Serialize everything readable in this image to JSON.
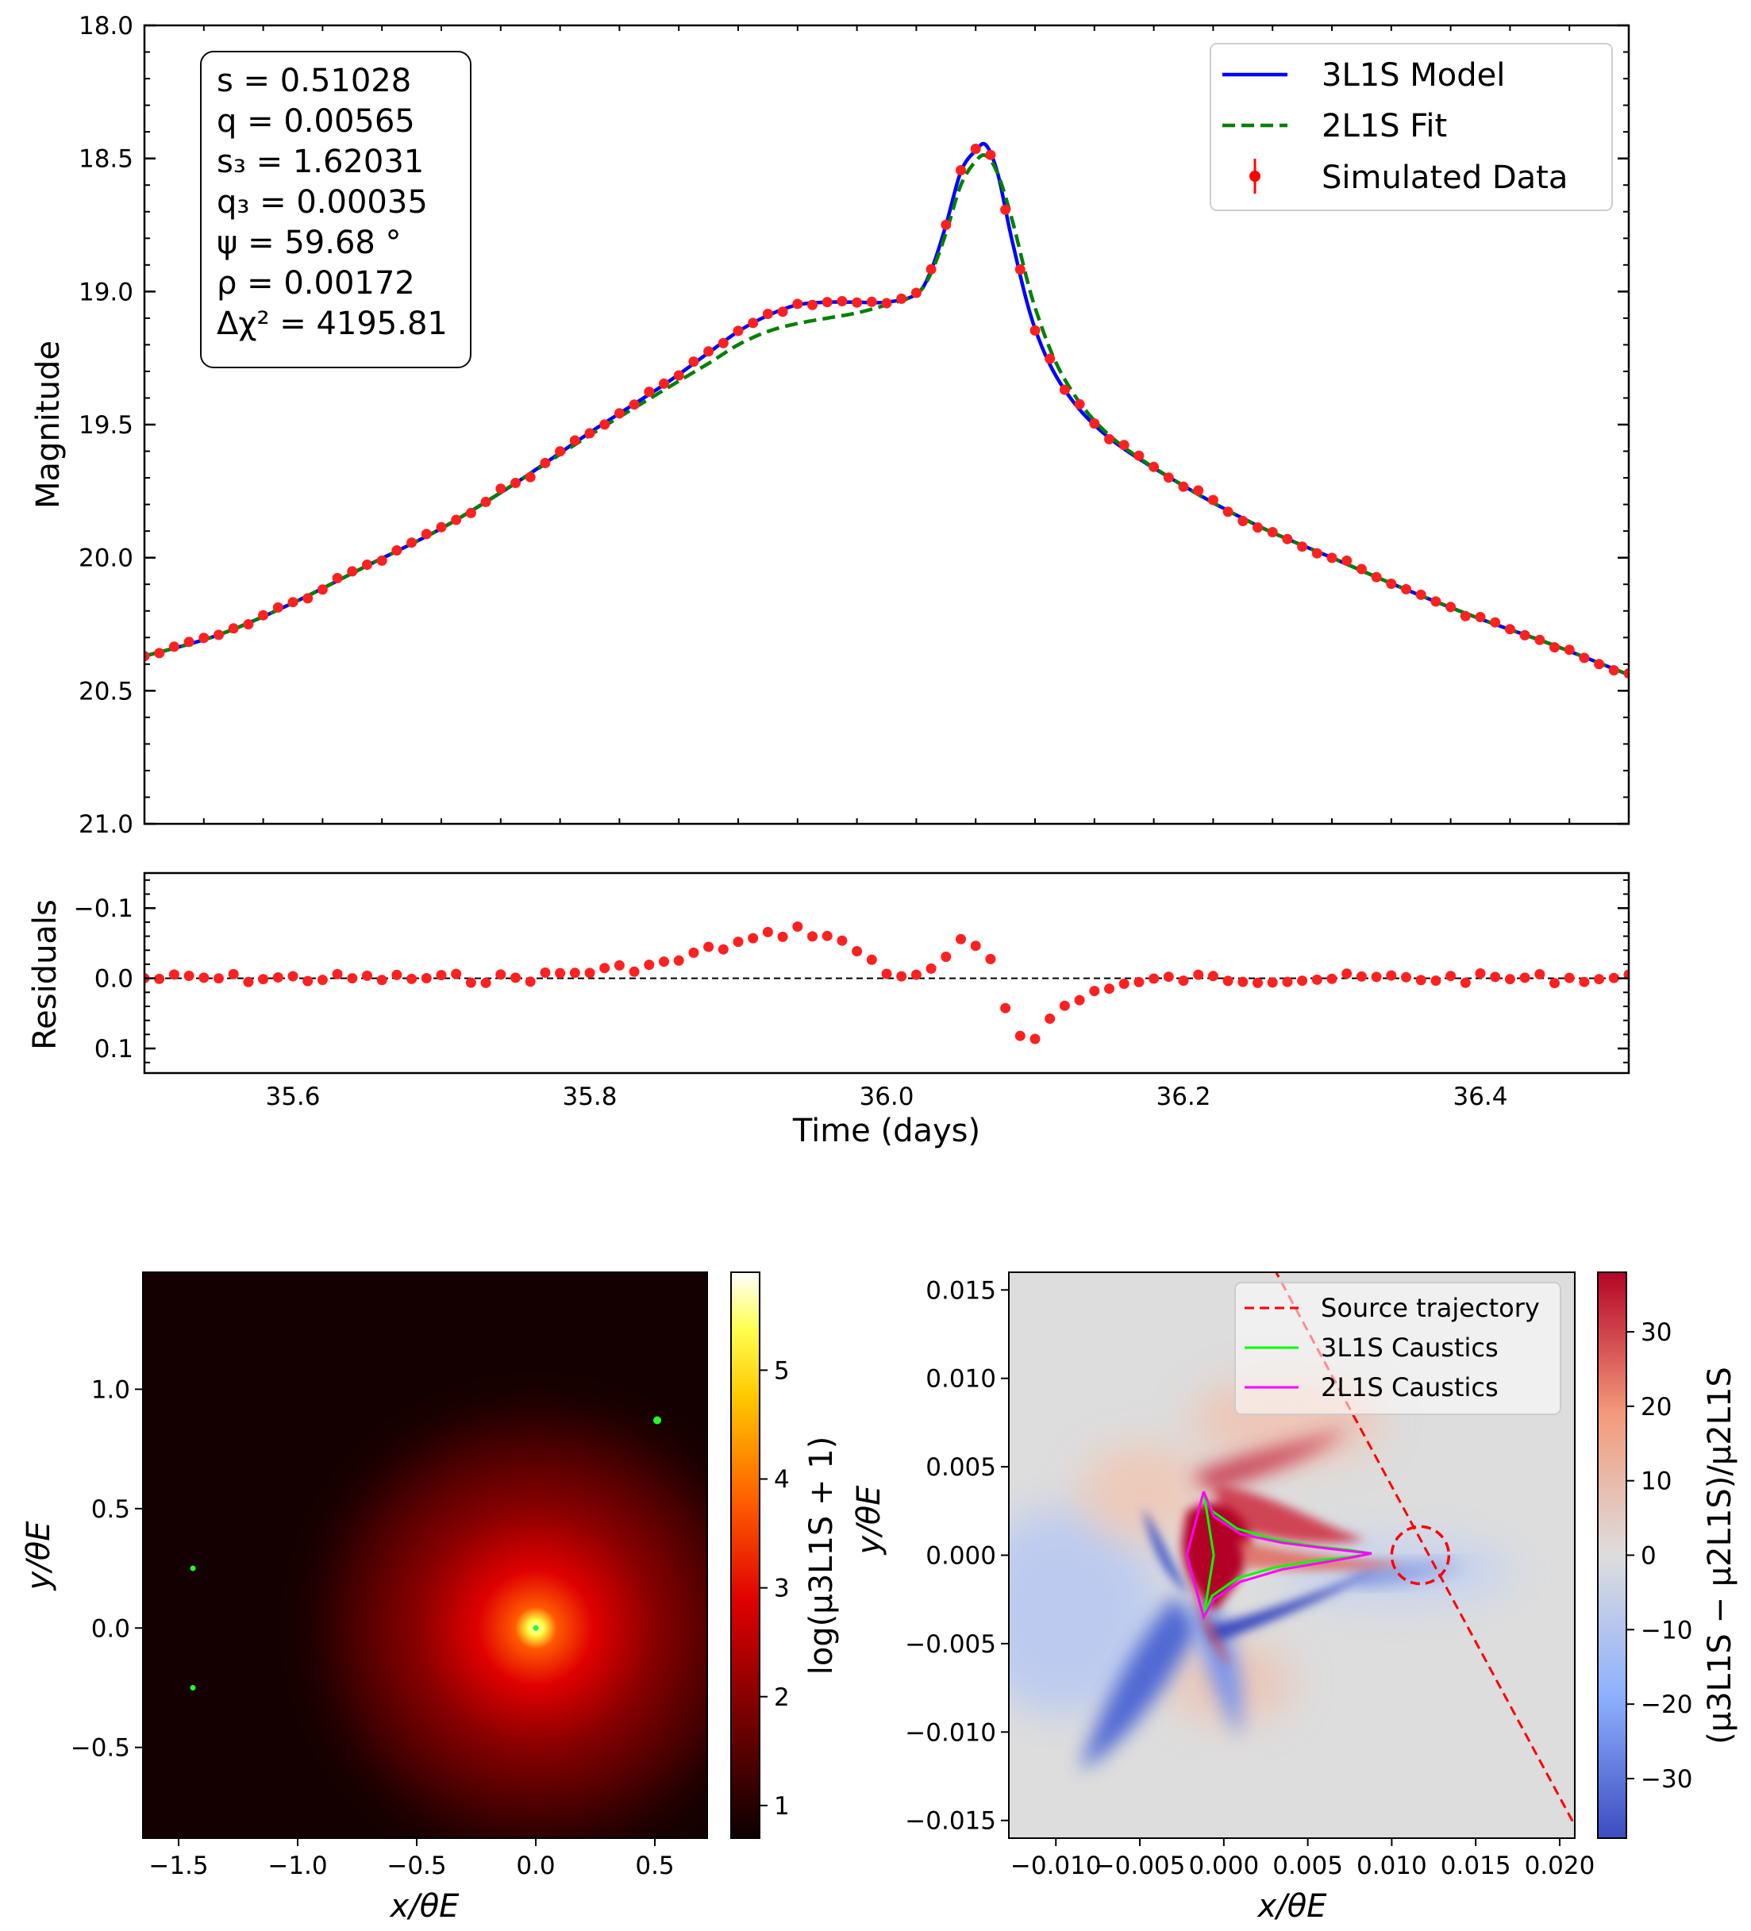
{
  "chart_data": [
    {
      "id": "lightcurve",
      "type": "line",
      "xlabel": "",
      "ylabel": "Magnitude",
      "xlim": [
        35.5,
        36.5
      ],
      "ylim": [
        21.0,
        18.0
      ],
      "yticks": [
        {
          "v": 18.0,
          "label": "18.0"
        },
        {
          "v": 18.5,
          "label": "18.5"
        },
        {
          "v": 19.0,
          "label": "19.0"
        },
        {
          "v": 19.5,
          "label": "19.5"
        },
        {
          "v": 20.0,
          "label": "20.0"
        },
        {
          "v": 20.5,
          "label": "20.5"
        },
        {
          "v": 21.0,
          "label": "21.0"
        }
      ],
      "params": [
        "s = 0.51028",
        "q = 0.00565",
        "s₃ = 1.62031",
        "q₃ = 0.00035",
        "ψ = 59.68 °",
        "ρ = 0.00172",
        "Δχ² = 4195.81"
      ],
      "legend": {
        "position": "top-right",
        "entries": [
          {
            "label": "3L1S Model",
            "color": "#0000ff",
            "style": "solid"
          },
          {
            "label": "2L1S Fit",
            "color": "#008000",
            "style": "dashed"
          },
          {
            "label": "Simulated Data",
            "color": "#ff0000",
            "style": "marker"
          }
        ]
      },
      "series": [
        {
          "name": "3L1S Model",
          "x": [
            35.5,
            35.55,
            35.6,
            35.65,
            35.7,
            35.75,
            35.8,
            35.85,
            35.88,
            35.9,
            35.92,
            35.94,
            35.96,
            35.98,
            36.0,
            36.02,
            36.03,
            36.04,
            36.05,
            36.06,
            36.067,
            36.075,
            36.085,
            36.1,
            36.12,
            36.15,
            36.2,
            36.25,
            36.3,
            36.35,
            36.4,
            36.45,
            36.5
          ],
          "values": [
            20.37,
            20.29,
            20.17,
            20.03,
            19.89,
            19.72,
            19.53,
            19.35,
            19.23,
            19.15,
            19.09,
            19.05,
            19.04,
            19.04,
            19.04,
            19.01,
            18.92,
            18.75,
            18.55,
            18.47,
            18.45,
            18.56,
            18.82,
            19.14,
            19.37,
            19.55,
            19.73,
            19.88,
            20.0,
            20.12,
            20.23,
            20.33,
            20.44
          ]
        },
        {
          "name": "2L1S Fit",
          "x": [
            35.5,
            35.55,
            35.6,
            35.65,
            35.7,
            35.75,
            35.8,
            35.85,
            35.88,
            35.9,
            35.92,
            35.94,
            35.96,
            35.98,
            36.0,
            36.02,
            36.03,
            36.04,
            36.05,
            36.06,
            36.067,
            36.075,
            36.085,
            36.1,
            36.12,
            36.15,
            36.2,
            36.25,
            36.3,
            36.35,
            36.4,
            36.45,
            36.5
          ],
          "values": [
            20.37,
            20.29,
            20.17,
            20.03,
            19.89,
            19.72,
            19.54,
            19.37,
            19.27,
            19.2,
            19.15,
            19.12,
            19.1,
            19.08,
            19.05,
            19.01,
            18.93,
            18.78,
            18.6,
            18.51,
            18.49,
            18.56,
            18.74,
            19.06,
            19.33,
            19.54,
            19.73,
            19.88,
            20.0,
            20.12,
            20.23,
            20.33,
            20.44
          ]
        }
      ]
    },
    {
      "id": "residuals",
      "type": "scatter",
      "xlabel": "Time (days)",
      "ylabel": "Residuals",
      "xlim": [
        35.5,
        36.5
      ],
      "ylim": [
        0.135,
        -0.15
      ],
      "xticks": [
        {
          "v": 35.6,
          "label": "35.6"
        },
        {
          "v": 35.8,
          "label": "35.8"
        },
        {
          "v": 36.0,
          "label": "36.0"
        },
        {
          "v": 36.2,
          "label": "36.2"
        },
        {
          "v": 36.4,
          "label": "36.4"
        }
      ],
      "yticks": [
        {
          "v": -0.1,
          "label": "−0.1"
        },
        {
          "v": 0.0,
          "label": "0.0"
        },
        {
          "v": 0.1,
          "label": "0.1"
        }
      ],
      "reference_line": 0.0
    },
    {
      "id": "magnification_map",
      "type": "heatmap",
      "xlabel": "x/θE",
      "ylabel": "y/θE",
      "xlim": [
        -1.65,
        0.72
      ],
      "ylim": [
        -0.88,
        1.49
      ],
      "xticks": [
        {
          "v": -1.5,
          "label": "−1.5"
        },
        {
          "v": -1.0,
          "label": "−1.0"
        },
        {
          "v": -0.5,
          "label": "−0.5"
        },
        {
          "v": 0.0,
          "label": "0.0"
        },
        {
          "v": 0.5,
          "label": "0.5"
        }
      ],
      "yticks": [
        {
          "v": -0.5,
          "label": "−0.5"
        },
        {
          "v": 0.0,
          "label": "0.0"
        },
        {
          "v": 0.5,
          "label": "0.5"
        },
        {
          "v": 1.0,
          "label": "1.0"
        }
      ],
      "colorbar": {
        "label": "log(μ3L1S + 1)",
        "colormap": "hot",
        "range": [
          0.7,
          5.9
        ],
        "ticks": [
          {
            "v": 1,
            "label": "1"
          },
          {
            "v": 2,
            "label": "2"
          },
          {
            "v": 3,
            "label": "3"
          },
          {
            "v": 4,
            "label": "4"
          },
          {
            "v": 5,
            "label": "5"
          }
        ]
      },
      "caustic_points": [
        [
          0.0,
          0.0
        ],
        [
          -1.44,
          0.25
        ],
        [
          -1.44,
          -0.25
        ],
        [
          0.51,
          0.87
        ]
      ]
    },
    {
      "id": "difference_map",
      "type": "heatmap",
      "xlabel": "x/θE",
      "ylabel": "y/θE",
      "xlim": [
        -0.0128,
        0.0209
      ],
      "ylim": [
        -0.016,
        0.016
      ],
      "xticks": [
        {
          "v": -0.01,
          "label": "−0.010"
        },
        {
          "v": -0.005,
          "label": "−0.005"
        },
        {
          "v": 0.0,
          "label": "0.000"
        },
        {
          "v": 0.005,
          "label": "0.005"
        },
        {
          "v": 0.01,
          "label": "0.010"
        },
        {
          "v": 0.015,
          "label": "0.015"
        },
        {
          "v": 0.02,
          "label": "0.020"
        }
      ],
      "yticks": [
        {
          "v": -0.015,
          "label": "−0.015"
        },
        {
          "v": -0.01,
          "label": "−0.010"
        },
        {
          "v": -0.005,
          "label": "−0.005"
        },
        {
          "v": 0.0,
          "label": "0.000"
        },
        {
          "v": 0.005,
          "label": "0.005"
        },
        {
          "v": 0.01,
          "label": "0.010"
        },
        {
          "v": 0.015,
          "label": "0.015"
        }
      ],
      "colorbar": {
        "label": "(μ3L1S − μ2L1S)/μ2L1S",
        "colormap": "coolwarm",
        "range": [
          -38,
          38
        ],
        "ticks": [
          {
            "v": -30,
            "label": "−30"
          },
          {
            "v": -20,
            "label": "−20"
          },
          {
            "v": -10,
            "label": "−10"
          },
          {
            "v": 0,
            "label": "0"
          },
          {
            "v": 10,
            "label": "10"
          },
          {
            "v": 20,
            "label": "20"
          },
          {
            "v": 30,
            "label": "30"
          }
        ]
      },
      "legend": {
        "position": "top-right",
        "entries": [
          {
            "label": "Source trajectory",
            "color": "#ff0000",
            "style": "dashed"
          },
          {
            "label": "3L1S Caustics",
            "color": "#00ff00",
            "style": "solid"
          },
          {
            "label": "2L1S Caustics",
            "color": "#ff00ff",
            "style": "solid"
          }
        ]
      },
      "source_trajectory": {
        "x": [
          0.003,
          0.0212
        ],
        "y": [
          0.0162,
          -0.0158
        ]
      },
      "source_circle": {
        "x": 0.0117,
        "y": 0.0,
        "r": 0.0017
      },
      "caustic_3l1s": {
        "x": [
          -0.0012,
          -0.0007,
          0.0008,
          0.003,
          0.0055,
          0.0075,
          0.0088,
          0.0075,
          0.0055,
          0.003,
          0.0008,
          -0.0007,
          -0.0012,
          -0.0006,
          -0.0012
        ],
        "y": [
          0.0036,
          0.0025,
          0.0015,
          0.0009,
          0.0005,
          0.0003,
          0.0001,
          -0.0001,
          -0.0003,
          -0.0007,
          -0.0013,
          -0.0023,
          -0.0035,
          0.0,
          0.0036
        ]
      },
      "caustic_2l1s": {
        "x": [
          -0.0012,
          -0.0006,
          0.001,
          0.0035,
          0.006,
          0.0078,
          0.0088,
          0.0078,
          0.006,
          0.0035,
          0.001,
          -0.0006,
          -0.0012,
          -0.0022,
          -0.0012
        ],
        "y": [
          0.0036,
          0.0022,
          0.0012,
          0.0007,
          0.0004,
          0.0002,
          0.0001,
          -0.0001,
          -0.0004,
          -0.0008,
          -0.0015,
          -0.0025,
          -0.0035,
          0.0,
          0.0036
        ]
      }
    }
  ]
}
